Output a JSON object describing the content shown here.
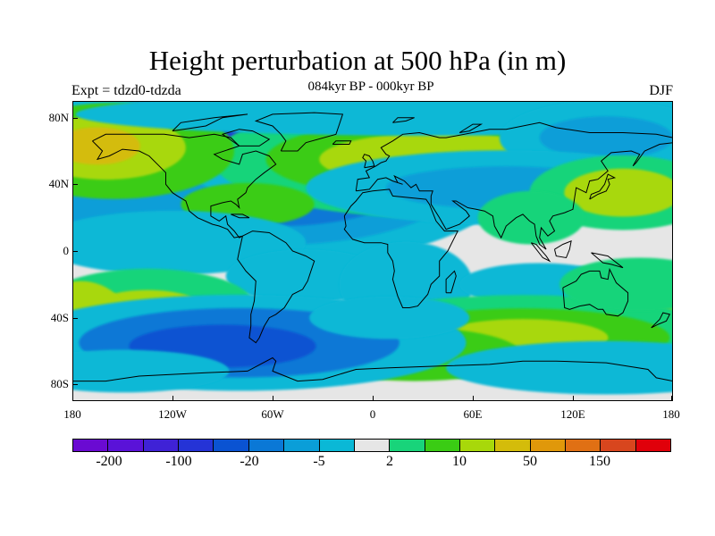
{
  "title": "Height perturbation at 500 hPa (in m)",
  "subtitle": "084kyr BP - 000kyr BP",
  "left_label": "Expt = tdzd0-tdzda",
  "right_label": "DJF",
  "y_ticks": [
    "80N",
    "40N",
    "0",
    "40S",
    "80S"
  ],
  "x_ticks": [
    "180",
    "120W",
    "60W",
    "0",
    "60E",
    "120E",
    "180"
  ],
  "colorbar": {
    "colors": [
      "#6a0ad2",
      "#5a12d8",
      "#3f22d6",
      "#2533d6",
      "#0a53d2",
      "#0a78d6",
      "#0a9ed8",
      "#0ab8d6",
      "#e6e6e6",
      "#18d47a",
      "#3acc14",
      "#a8d80a",
      "#d4bc0a",
      "#e0980a",
      "#e07014",
      "#d8461e",
      "#e0000a"
    ],
    "tick_labels": [
      "-200",
      "-100",
      "-20",
      "-5",
      "2",
      "10",
      "50",
      "150"
    ]
  },
  "colors": {
    "neutral": "#e6e6e6",
    "neg_light": "#0ab8d6",
    "neg_mid": "#0a9ed8",
    "neg_strong": "#0a78d6",
    "neg_deep": "#0a53d2",
    "neg_max": "#2533d6",
    "pos_light": "#18d47a",
    "pos_mid": "#3acc14",
    "pos_strong": "#a8d80a",
    "pos_deep": "#d4bc0a"
  }
}
